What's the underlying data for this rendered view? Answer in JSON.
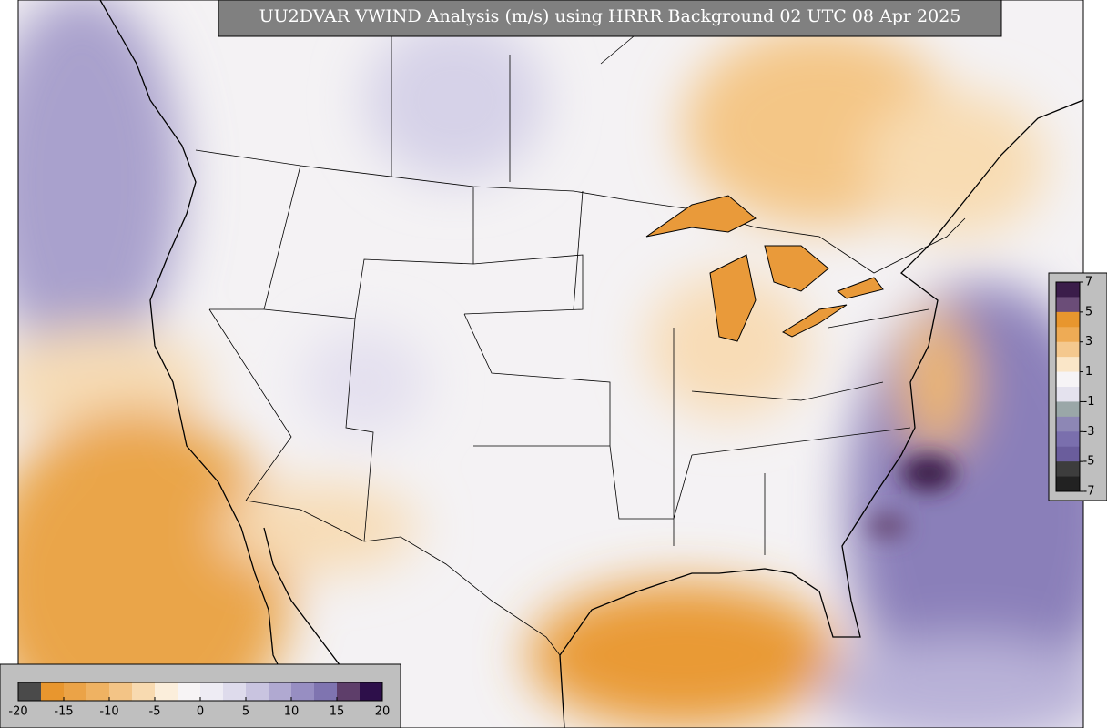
{
  "title": "UU2DVAR VWIND Analysis (m/s) using HRRR Background 02 UTC 08 Apr 2025",
  "colorbars": [
    {
      "orientation": "horizontal",
      "ticks": [
        -20,
        -15,
        -10,
        -5,
        0,
        5,
        10,
        15,
        20
      ],
      "colors": [
        "#4a4a4a",
        "#e8962e",
        "#eba347",
        "#efb262",
        "#f3c486",
        "#f8dab0",
        "#fbeedb",
        "#f7f4f5",
        "#eeecf4",
        "#dedbec",
        "#c9c4e0",
        "#b0a9d1",
        "#978ec2",
        "#7f74b0",
        "#5e3e6a",
        "#2d0f4a"
      ]
    },
    {
      "orientation": "vertical",
      "ticks": [
        7,
        5,
        3,
        1,
        -1,
        -3,
        -5,
        -7
      ],
      "colors": [
        "#3b1d4a",
        "#6b4d78",
        "#e8962e",
        "#eeab55",
        "#f4c88e",
        "#fae6c8",
        "#f6f4f6",
        "#e4e2ee",
        "#9aa7a8",
        "#8d87b5",
        "#7a6fad",
        "#6a5d9c",
        "#3d3d3d",
        "#222222"
      ]
    }
  ]
}
